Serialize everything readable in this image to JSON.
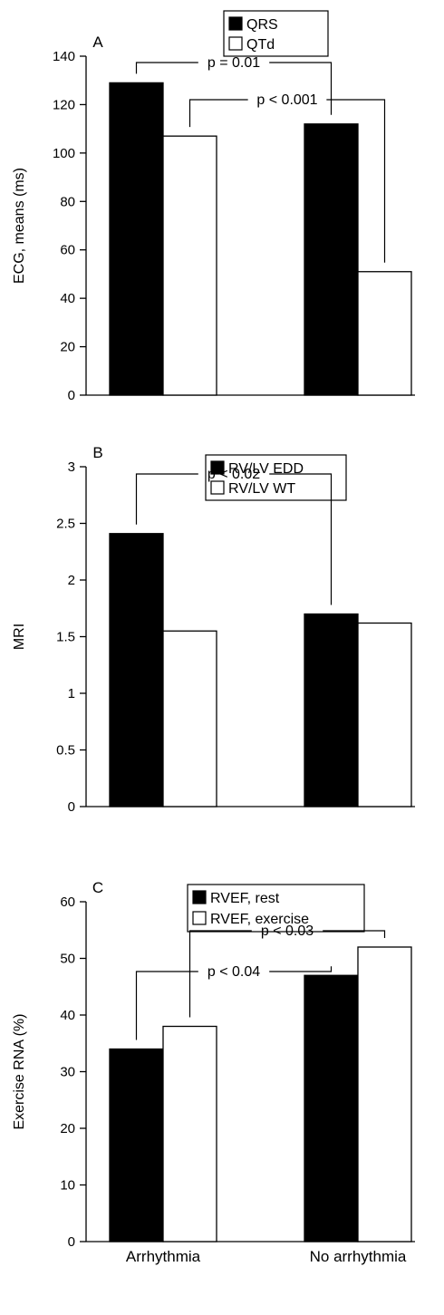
{
  "chart_data": [
    {
      "type": "bar",
      "panel_label": "A",
      "ylabel": "ECG, means (ms)",
      "ylim": [
        0,
        140
      ],
      "yticks": [
        0,
        20,
        40,
        60,
        80,
        100,
        120,
        140
      ],
      "categories": [
        "Arrhythmia",
        "No arrhythmia"
      ],
      "series": [
        {
          "name": "QRS",
          "values": [
            129,
            112
          ],
          "color": "#000000"
        },
        {
          "name": "QTd",
          "values": [
            107,
            51
          ],
          "color": "#ffffff"
        }
      ],
      "annotations": [
        {
          "text": "p = 0.01",
          "series": "QRS"
        },
        {
          "text": "p < 0.001",
          "series": "QTd"
        }
      ],
      "legend_position": "top-center",
      "grid": false
    },
    {
      "type": "bar",
      "panel_label": "B",
      "ylabel": "MRI",
      "ylim": [
        0,
        3
      ],
      "yticks": [
        0,
        0.5,
        1,
        1.5,
        2,
        2.5,
        3
      ],
      "categories": [
        "Arrhythmia",
        "No arrhythmia"
      ],
      "series": [
        {
          "name": "RV/LV EDD",
          "values": [
            2.41,
            1.7
          ],
          "color": "#000000"
        },
        {
          "name": "RV/LV WT",
          "values": [
            1.55,
            1.62
          ],
          "color": "#ffffff"
        }
      ],
      "annotations": [
        {
          "text": "p < 0.02",
          "series": "RV/LV EDD"
        }
      ],
      "legend_position": "top-center",
      "grid": false
    },
    {
      "type": "bar",
      "panel_label": "C",
      "ylabel": "Exercise RNA (%)",
      "ylim": [
        0,
        60
      ],
      "yticks": [
        0,
        10,
        20,
        30,
        40,
        50,
        60
      ],
      "categories": [
        "Arrhythmia",
        "No arrhythmia"
      ],
      "series": [
        {
          "name": "RVEF, rest",
          "values": [
            34,
            47
          ],
          "color": "#000000"
        },
        {
          "name": "RVEF, exercise",
          "values": [
            38,
            52
          ],
          "color": "#ffffff"
        }
      ],
      "annotations": [
        {
          "text": "p < 0.04",
          "series": "RVEF, rest"
        },
        {
          "text": "p < 0.03",
          "series": "RVEF, exercise"
        }
      ],
      "legend_position": "top-center",
      "grid": false
    }
  ]
}
